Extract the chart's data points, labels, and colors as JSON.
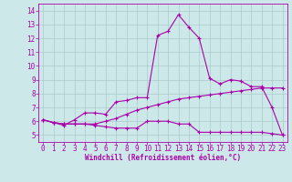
{
  "xlabel": "Windchill (Refroidissement éolien,°C)",
  "bg_color": "#cce8e8",
  "grid_color": "#aacccc",
  "line_color": "#aa00aa",
  "xlim": [
    -0.5,
    23.5
  ],
  "ylim": [
    4.5,
    14.5
  ],
  "xticks": [
    0,
    1,
    2,
    3,
    4,
    5,
    6,
    7,
    8,
    9,
    10,
    11,
    12,
    13,
    14,
    15,
    16,
    17,
    18,
    19,
    20,
    21,
    22,
    23
  ],
  "yticks": [
    5,
    6,
    7,
    8,
    9,
    10,
    11,
    12,
    13,
    14
  ],
  "lines": [
    [
      6.1,
      5.9,
      5.7,
      6.1,
      6.6,
      6.6,
      6.5,
      7.4,
      7.5,
      7.7,
      7.7,
      12.2,
      12.5,
      13.7,
      12.8,
      12.0,
      9.1,
      8.7,
      9.0,
      8.9,
      8.5,
      8.5,
      7.0,
      5.0
    ],
    [
      6.1,
      5.9,
      5.8,
      5.8,
      5.8,
      5.8,
      6.0,
      6.2,
      6.5,
      6.8,
      7.0,
      7.2,
      7.4,
      7.6,
      7.7,
      7.8,
      7.9,
      8.0,
      8.1,
      8.2,
      8.3,
      8.4,
      8.4,
      8.4
    ],
    [
      6.1,
      5.9,
      5.8,
      5.8,
      5.8,
      5.7,
      5.6,
      5.5,
      5.5,
      5.5,
      6.0,
      6.0,
      6.0,
      5.8,
      5.8,
      5.2,
      5.2,
      5.2,
      5.2,
      5.2,
      5.2,
      5.2,
      5.1,
      5.0
    ]
  ],
  "tick_fontsize": 5.5,
  "xlabel_fontsize": 5.5
}
